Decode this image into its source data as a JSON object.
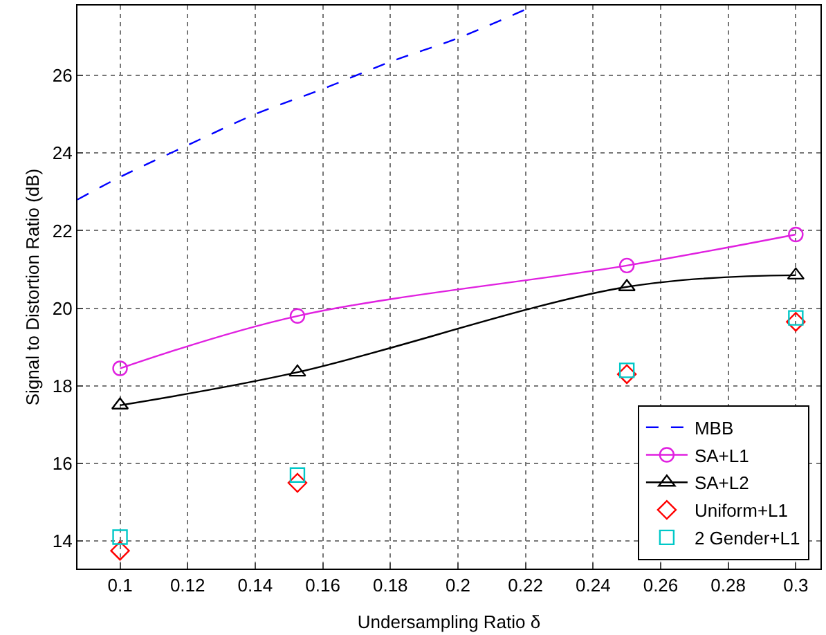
{
  "chart_data": {
    "type": "line",
    "xlabel": "Undersampling Ratio δ",
    "ylabel": "Signal to Distortion Ratio (dB)",
    "xlim": [
      0.0874,
      0.3073
    ],
    "ylim": [
      13.29,
      27.8
    ],
    "xticks": [
      0.1,
      0.12,
      0.14,
      0.16,
      0.18,
      0.2,
      0.22,
      0.24,
      0.26,
      0.28,
      0.3
    ],
    "yticks": [
      14,
      16,
      18,
      20,
      22,
      24,
      26
    ],
    "grid": true,
    "legend": "bottom right",
    "series": [
      {
        "name": "MBB",
        "color": "#0000ff",
        "line_style": "dashed",
        "marker": "none",
        "x": [
          0.0874,
          0.1,
          0.12,
          0.14,
          0.16,
          0.18,
          0.2,
          0.22
        ],
        "values": [
          22.8,
          23.38,
          24.2,
          25.0,
          25.65,
          26.35,
          26.96,
          27.7
        ]
      },
      {
        "name": "SA+L1",
        "color": "#e020e0",
        "line_style": "solid",
        "marker": "circle",
        "x": [
          0.1,
          0.1525,
          0.25,
          0.3
        ],
        "values": [
          18.45,
          19.8,
          21.1,
          21.9
        ]
      },
      {
        "name": "SA+L2",
        "color": "#000000",
        "line_style": "solid",
        "marker": "triangle",
        "x": [
          0.1,
          0.1525,
          0.25,
          0.3
        ],
        "values": [
          17.5,
          18.35,
          20.55,
          20.85
        ]
      },
      {
        "name": "Uniform+L1",
        "type": "scatter",
        "color": "#ff0000",
        "marker": "diamond",
        "x": [
          0.1,
          0.1525,
          0.25,
          0.3
        ],
        "values": [
          13.75,
          15.5,
          18.3,
          19.65
        ]
      },
      {
        "name": "2 Gender+L1",
        "type": "scatter",
        "color": "#00c8c8",
        "marker": "square",
        "x": [
          0.1,
          0.1525,
          0.25,
          0.3
        ],
        "values": [
          14.1,
          15.7,
          18.4,
          19.75
        ]
      }
    ]
  }
}
